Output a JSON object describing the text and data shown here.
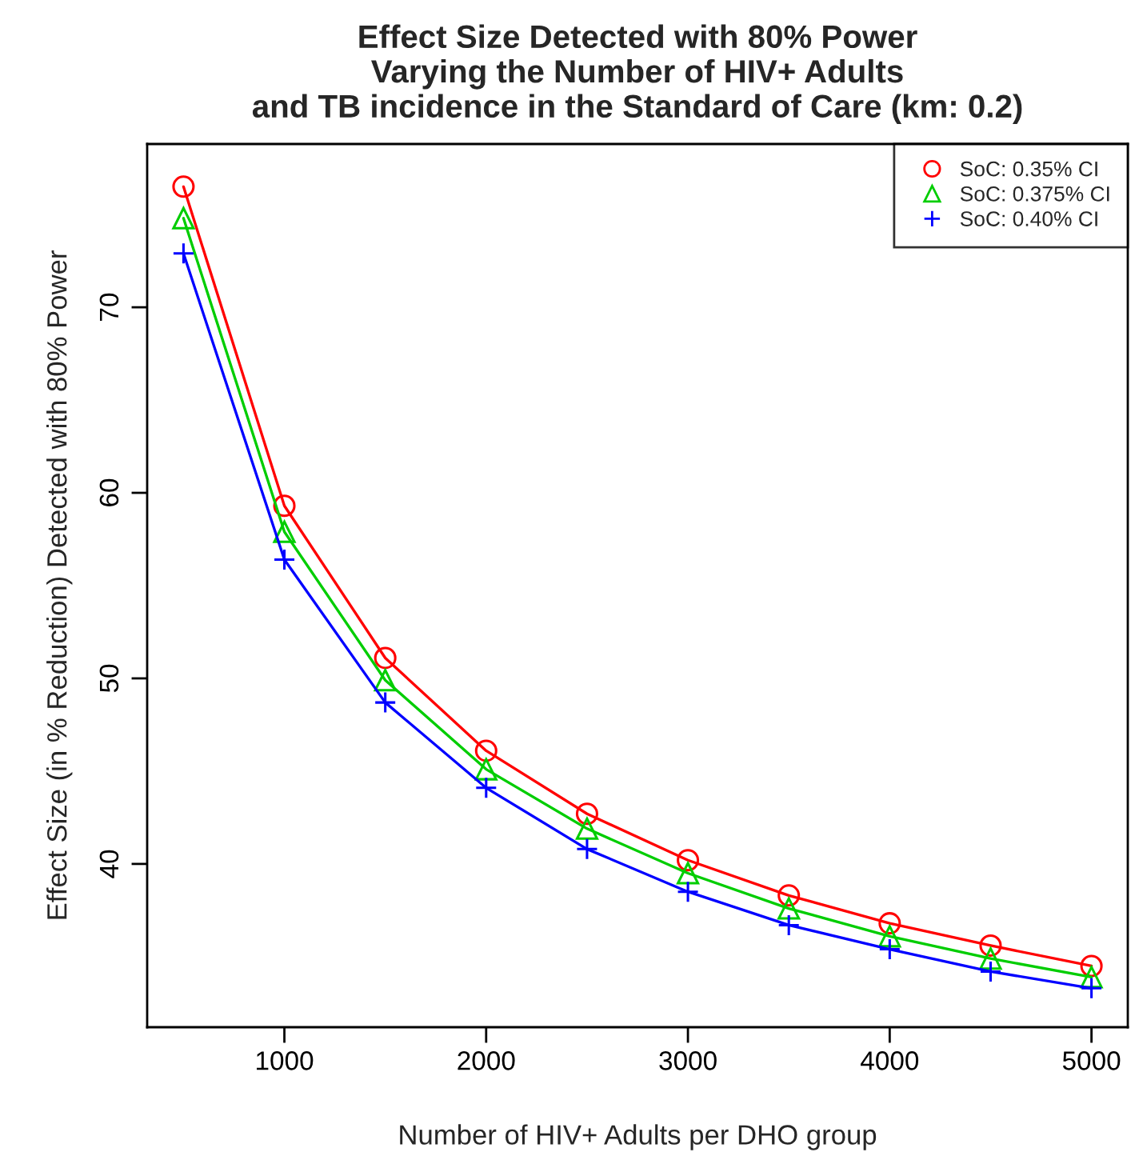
{
  "chart_data": {
    "type": "line",
    "title": "Effect Size Detected with 80% Power\nVarying the Number of HIV+ Adults\nand TB incidence in the Standard of Care (km: 0.2)",
    "xlabel": "Number of HIV+ Adults per DHO group",
    "ylabel": "Effect Size (in % Reduction) Detected with 80% Power",
    "x": [
      500,
      1000,
      1500,
      2000,
      2500,
      3000,
      3500,
      4000,
      4500,
      5000
    ],
    "series": [
      {
        "name": "SoC: 0.35% CI",
        "color": "#ff0000",
        "marker": "circle",
        "values": [
          76.5,
          59.3,
          51.1,
          46.1,
          42.7,
          40.2,
          38.3,
          36.8,
          35.6,
          34.5
        ]
      },
      {
        "name": "SoC: 0.375% CI",
        "color": "#00cd00",
        "marker": "triangle",
        "values": [
          74.8,
          57.9,
          49.9,
          45.1,
          41.9,
          39.5,
          37.6,
          36.1,
          34.9,
          33.9
        ]
      },
      {
        "name": "SoC: 0.40% CI",
        "color": "#0000ff",
        "marker": "cross",
        "values": [
          72.9,
          56.4,
          48.7,
          44.1,
          40.8,
          38.5,
          36.7,
          35.4,
          34.2,
          33.3
        ]
      }
    ],
    "xlim": [
      320,
      5180
    ],
    "ylim": [
      31.2,
      78.8
    ],
    "xticks": [
      1000,
      2000,
      3000,
      4000,
      5000
    ],
    "yticks": [
      40,
      50,
      60,
      70
    ],
    "grid": false,
    "legend": "top right",
    "line_style": "solid"
  }
}
